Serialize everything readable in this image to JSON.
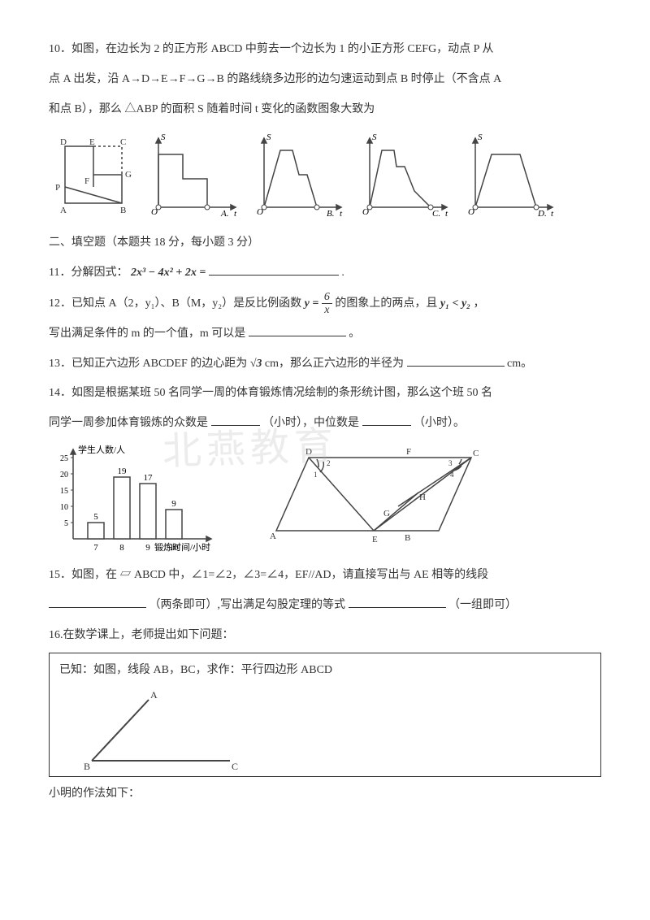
{
  "q10": {
    "line1": "10．如图，在边长为 2 的正方形 ABCD 中剪去一个边长为 1 的小正方形 CEFG，动点 P 从",
    "line2": "点 A 出发，沿 A→D→E→F→G→B 的路线绕多边形的边匀速运动到点 B 时停止（不含点 A",
    "line3": "和点 B），那么 △ABP 的面积 S 随着时间 t 变化的函数图象大致为",
    "labels": {
      "D": "D",
      "E": "E",
      "C": "C",
      "P": "P",
      "F": "F",
      "G": "G",
      "A": "A",
      "B": "B",
      "S": "S",
      "O": "O",
      "t": "t",
      "optA": "A.",
      "optB": "B.",
      "optC": "C.",
      "optD": "D."
    }
  },
  "sec2": "二、填空题（本题共 18 分，每小题 3 分）",
  "q11": {
    "pre": "11．分解因式：",
    "formula": "2x³ − 4x² + 2x =",
    "suf": "."
  },
  "q12": {
    "pre": "12．已知点 A（2，y₁）、B（M，y₂）是反比例函数 ",
    "eq_pre": "y =",
    "num": "6",
    "den": "x",
    "mid": " 的图象上的两点，且 ",
    "cond": "y₁ < y₂",
    "suf": "，",
    "line2": "写出满足条件的 m 的一个值，m 可以是",
    "end": "。"
  },
  "q13": {
    "pre": "13．已知正六边形 ABCDEF 的边心距为",
    "sqrt": "√3",
    "mid": " cm，那么正六边形的半径为",
    "unit": "cm。"
  },
  "q14": {
    "line1": "14．如图是根据某班 50 名同学一周的体育锻炼情况绘制的条形统计图，那么这个班 50 名",
    "line2a": "同学一周参加体育锻炼的众数是",
    "unit1": "（小时），中位数是",
    "unit2": "（小时）。"
  },
  "barChart": {
    "ylabel": "学生人数/人",
    "xlabel": "锻炼时间/小时",
    "yticks": [
      5,
      10,
      15,
      20,
      25
    ],
    "bars": [
      {
        "x": "7",
        "v": 5
      },
      {
        "x": "8",
        "v": 19
      },
      {
        "x": "9",
        "v": 17
      },
      {
        "x": "10",
        "v": 9
      }
    ]
  },
  "geom15": {
    "D": "D",
    "F": "F",
    "C": "C",
    "G": "G",
    "H": "H",
    "A": "A",
    "E": "E",
    "B": "B",
    "a1": "1",
    "a2": "2",
    "a3": "3",
    "a4": "4"
  },
  "q15": {
    "pre": "15．如图，在",
    "parallelogram": "▱",
    "mid1": " ABCD 中，∠1=∠2，∠3=∠4，EF//AD，请直接写出与 AE 相等的线段",
    "mid2": "（两条即可）,写出满足勾股定理的等式",
    "end": "（一组即可）"
  },
  "q16": {
    "head": "16.在数学课上，老师提出如下问题：",
    "box": "已知：如图，线段 AB，BC，求作：平行四边形 ABCD",
    "A": "A",
    "B": "B",
    "C": "C",
    "after": "小明的作法如下："
  },
  "watermark": "北燕教育",
  "colors": {
    "line": "#444",
    "text": "#333",
    "fill": "#fff"
  }
}
